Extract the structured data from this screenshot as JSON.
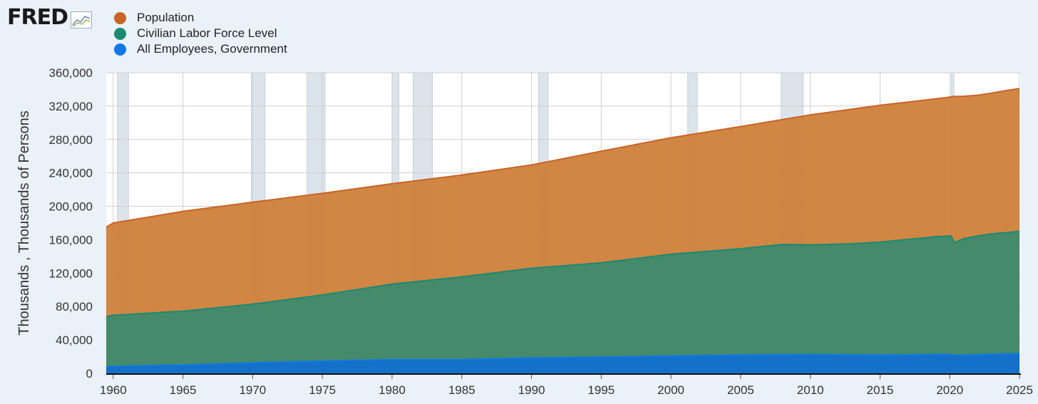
{
  "logo": {
    "text": "FRED"
  },
  "colors": {
    "population": "#c66526",
    "population_fill": "#d0823e",
    "labor": "#1a8a73",
    "labor_fill": "#3f8a6c",
    "government": "#0f78e6",
    "government_fill": "#1470cc",
    "recession": "#dde3ea",
    "grid": "#cfcfcf"
  },
  "chart_data": {
    "type": "area",
    "title": "",
    "xlabel": "",
    "ylabel": "Thousands , Thousands of Persons",
    "xlim": [
      1959.5,
      2025.1
    ],
    "ylim": [
      0,
      360000
    ],
    "x_ticks": [
      "1960",
      "1965",
      "1970",
      "1975",
      "1980",
      "1985",
      "1990",
      "1995",
      "2000",
      "2005",
      "2010",
      "2015",
      "2020",
      "2025"
    ],
    "y_ticks": [
      "0",
      "40,000",
      "80,000",
      "120,000",
      "160,000",
      "200,000",
      "240,000",
      "280,000",
      "320,000",
      "360,000"
    ],
    "grid": true,
    "legend_position": "top-left",
    "recessions": [
      [
        1960.3,
        1961.1
      ],
      [
        1969.9,
        1970.9
      ],
      [
        1973.9,
        1975.2
      ],
      [
        1980.0,
        1980.5
      ],
      [
        1981.5,
        1982.9
      ],
      [
        1990.5,
        1991.2
      ],
      [
        2001.2,
        2001.9
      ],
      [
        2007.9,
        2009.5
      ],
      [
        2020.1,
        2020.3
      ]
    ],
    "series": [
      {
        "name": "Population",
        "key": "population",
        "x": [
          1959.5,
          1960,
          1965,
          1970,
          1975,
          1980,
          1985,
          1990,
          1995,
          2000,
          2005,
          2010,
          2015,
          2019.9,
          2020.2,
          2021,
          2022,
          2023,
          2024,
          2025.0
        ],
        "values": [
          175000,
          180000,
          194000,
          205000,
          215500,
          227000,
          237500,
          249500,
          266000,
          282000,
          295500,
          309500,
          321000,
          330500,
          331500,
          331800,
          333000,
          335500,
          338500,
          341000
        ]
      },
      {
        "name": "Civilian Labor Force Level",
        "key": "labor",
        "x": [
          1959.5,
          1960,
          1965,
          1970,
          1975,
          1980,
          1985,
          1990,
          1995,
          2000,
          2005,
          2008,
          2010,
          2013,
          2015,
          2019,
          2020.1,
          2020.3,
          2021,
          2022,
          2023,
          2024,
          2025.0
        ],
        "values": [
          68000,
          69500,
          74500,
          82800,
          93800,
          106900,
          115500,
          125800,
          132300,
          142600,
          149300,
          154300,
          153900,
          155200,
          157100,
          163500,
          164600,
          156500,
          161200,
          164500,
          167000,
          168500,
          170000
        ]
      },
      {
        "name": "All Employees, Government",
        "key": "government",
        "x": [
          1959.5,
          1960,
          1965,
          1970,
          1975,
          1980,
          1985,
          1990,
          1995,
          2000,
          2005,
          2010,
          2015,
          2019.9,
          2020.4,
          2021,
          2022,
          2023,
          2024,
          2025.0
        ],
        "values": [
          8000,
          8400,
          10100,
          12550,
          14700,
          16400,
          16400,
          18400,
          19400,
          20800,
          21900,
          22500,
          21900,
          22700,
          21500,
          21900,
          22300,
          22700,
          23400,
          23600
        ]
      }
    ]
  }
}
